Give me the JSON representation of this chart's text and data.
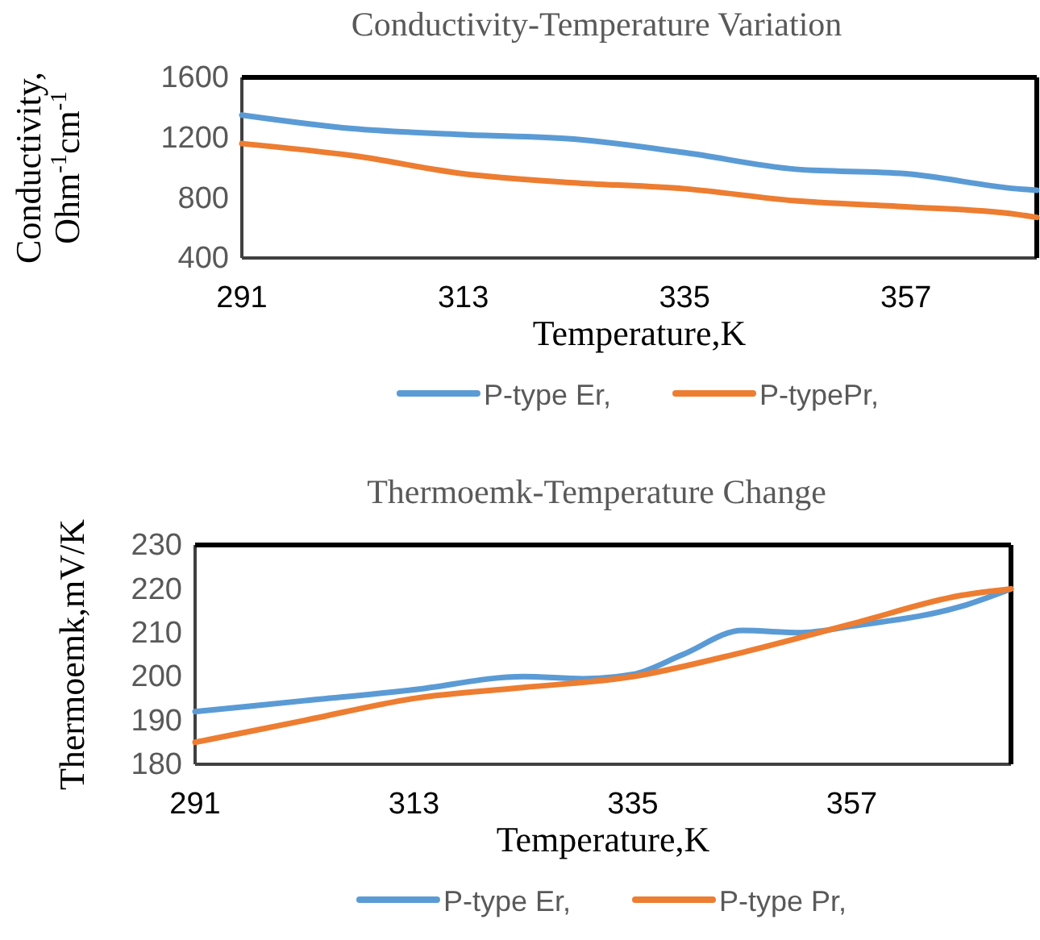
{
  "chart_data": [
    {
      "type": "line",
      "title": "Conductivity-Temperature Variation",
      "xlabel": "Temperature,K",
      "ylabel": "Conductivity,\nOhm$^{-1}$cm$^{-1}$",
      "x": [
        291,
        302,
        313,
        324,
        335,
        346,
        357,
        368,
        370
      ],
      "series": [
        {
          "name": "P-type Er,",
          "color": "#5b9bd5",
          "values": [
            1350,
            1260,
            1220,
            1190,
            1100,
            990,
            960,
            860,
            850
          ]
        },
        {
          "name": "P-typePr,",
          "color": "#ed7d31",
          "values": [
            1160,
            1080,
            960,
            900,
            860,
            780,
            740,
            690,
            670
          ]
        }
      ],
      "xlim": [
        291,
        370
      ],
      "xticks": [
        291,
        313,
        335,
        357
      ],
      "ylim": [
        400,
        1600
      ],
      "yticks": [
        400,
        800,
        1200,
        1600
      ],
      "grid": false,
      "legend": "bottom",
      "marker": "none",
      "line_style": "solid"
    },
    {
      "type": "line",
      "title": "Thermoemk-Temperature Change",
      "xlabel": "Temperature,K",
      "ylabel": "Thermoemk,mV/K",
      "series": [
        {
          "name": "P-type Er,",
          "color": "#5b9bd5",
          "x": [
            291,
            302,
            313,
            324,
            330,
            335,
            340,
            346,
            352,
            357,
            368,
            373
          ],
          "values": [
            192,
            194.5,
            197,
            200,
            199.5,
            200.5,
            205,
            210.5,
            210,
            211.5,
            216,
            220
          ]
        },
        {
          "name": "P-type Pr,",
          "color": "#ed7d31",
          "x": [
            291,
            302,
            313,
            324,
            335,
            346,
            357,
            368,
            373
          ],
          "values": [
            185,
            190,
            195,
            197.5,
            200,
            205.5,
            212,
            218.5,
            220
          ]
        }
      ],
      "xlim": [
        291,
        373
      ],
      "xticks": [
        291,
        313,
        335,
        357
      ],
      "ylim": [
        180,
        230
      ],
      "yticks": [
        180,
        190,
        200,
        210,
        220,
        230
      ],
      "grid": false,
      "legend": "bottom",
      "marker": "none",
      "line_style": "solid"
    }
  ]
}
